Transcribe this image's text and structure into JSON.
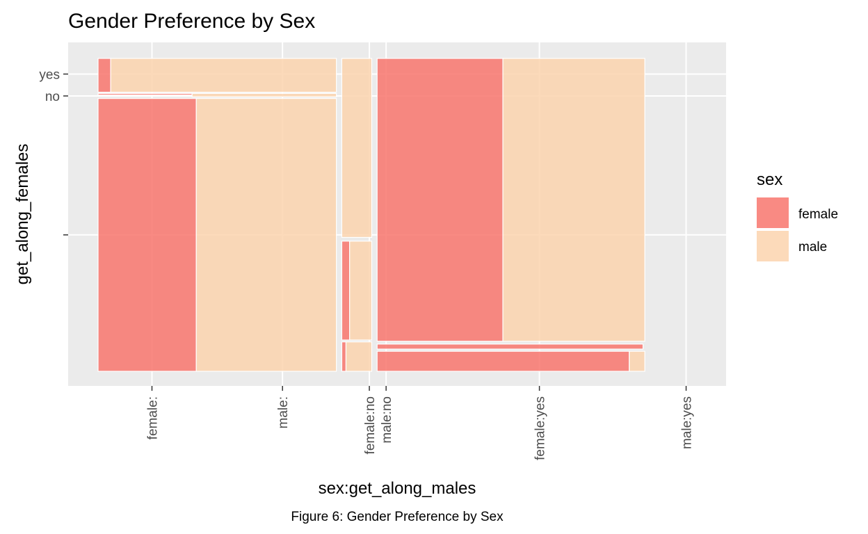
{
  "chart_data": {
    "type": "mosaic",
    "title": "Gender Preference by Sex",
    "xlabel": "sex:get_along_males",
    "ylabel": "get_along_females",
    "x_tick_labels": [
      "female:",
      "male:",
      "female:no",
      "male:no",
      "female:yes",
      "male:yes"
    ],
    "y_tick_labels": [
      "",
      "no",
      "yes"
    ],
    "legend": {
      "title": "sex",
      "entries": [
        {
          "label": "female",
          "color": "#F8766D"
        },
        {
          "label": "male",
          "color": "#FBD3AE"
        }
      ]
    },
    "fill_alpha": 0.85,
    "tiles": [
      {
        "sex": "female",
        "get_along_males": "",
        "get_along_females": "",
        "x0": 0.0,
        "x1": 0.164,
        "y0": 0.0,
        "y1": 0.872
      },
      {
        "sex": "male",
        "get_along_males": "",
        "get_along_females": "",
        "x0": 0.164,
        "x1": 0.398,
        "y0": 0.0,
        "y1": 0.872
      },
      {
        "sex": "female",
        "get_along_males": "",
        "get_along_females": "no",
        "x0": 0.0,
        "x1": 0.157,
        "y0": 0.883,
        "y1": 0.888
      },
      {
        "sex": "male",
        "get_along_males": "",
        "get_along_females": "no",
        "x0": 0.157,
        "x1": 0.398,
        "y0": 0.877,
        "y1": 0.888
      },
      {
        "sex": "female",
        "get_along_males": "",
        "get_along_females": "yes",
        "x0": 0.0,
        "x1": 0.021,
        "y0": 0.892,
        "y1": 1.0
      },
      {
        "sex": "male",
        "get_along_males": "",
        "get_along_females": "yes",
        "x0": 0.021,
        "x1": 0.398,
        "y0": 0.892,
        "y1": 1.0
      },
      {
        "sex": "female",
        "get_along_males": "no",
        "get_along_females": "",
        "x0": 0.407,
        "x1": 0.414,
        "y0": 0.0,
        "y1": 0.094
      },
      {
        "sex": "male",
        "get_along_males": "no",
        "get_along_females": "",
        "x0": 0.414,
        "x1": 0.457,
        "y0": 0.0,
        "y1": 0.094
      },
      {
        "sex": "female",
        "get_along_males": "no",
        "get_along_females": "no",
        "x0": 0.407,
        "x1": 0.42,
        "y0": 0.1,
        "y1": 0.416
      },
      {
        "sex": "male",
        "get_along_males": "no",
        "get_along_females": "no",
        "x0": 0.42,
        "x1": 0.457,
        "y0": 0.1,
        "y1": 0.416
      },
      {
        "sex": "male",
        "get_along_males": "no",
        "get_along_females": "yes",
        "x0": 0.407,
        "x1": 0.457,
        "y0": 0.428,
        "y1": 1.0
      },
      {
        "sex": "female",
        "get_along_males": "yes",
        "get_along_females": "",
        "x0": 0.466,
        "x1": 0.887,
        "y0": 0.0,
        "y1": 0.064
      },
      {
        "sex": "male",
        "get_along_males": "yes",
        "get_along_females": "",
        "x0": 0.887,
        "x1": 0.913,
        "y0": 0.0,
        "y1": 0.064
      },
      {
        "sex": "female",
        "get_along_males": "yes",
        "get_along_females": "no",
        "x0": 0.466,
        "x1": 0.91,
        "y0": 0.071,
        "y1": 0.087
      },
      {
        "sex": "female",
        "get_along_males": "yes",
        "get_along_females": "yes",
        "x0": 0.466,
        "x1": 0.676,
        "y0": 0.096,
        "y1": 1.0
      },
      {
        "sex": "male",
        "get_along_males": "yes",
        "get_along_females": "yes",
        "x0": 0.676,
        "x1": 0.913,
        "y0": 0.096,
        "y1": 1.0
      }
    ],
    "grid": true
  },
  "caption": "Figure 6: Gender Preference by Sex"
}
